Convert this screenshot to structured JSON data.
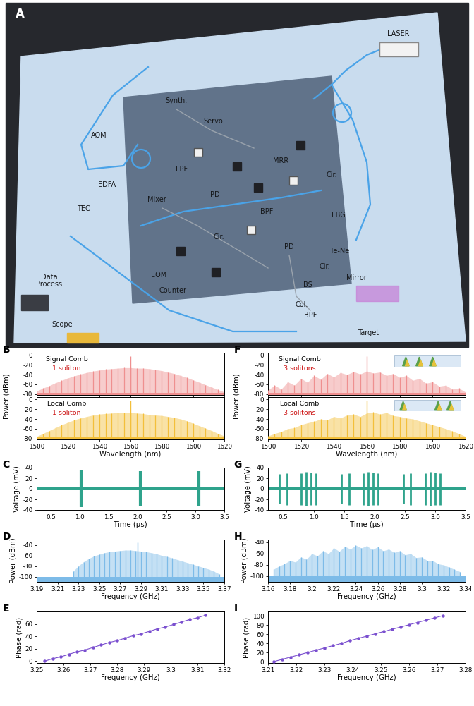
{
  "diagram": {
    "panel": "A",
    "labels": [
      "LASER",
      "Synth.",
      "Servo",
      "MRR",
      "Cir.",
      "AOM",
      "EDFA",
      "LPF",
      "Mixer",
      "PD",
      "BPF",
      "FBG",
      "He-Ne",
      "Cir.",
      "BS",
      "Mirror",
      "Col.",
      "Target",
      "TEC",
      "Cir.",
      "EOM",
      "Counter",
      "PD",
      "BPF",
      "Data\nProcess",
      "Scope"
    ]
  },
  "chart_data": [
    {
      "panel": "B",
      "type": "stem",
      "label": "Signal Comb",
      "note": "1 soliton",
      "color": "#ef8f8f",
      "ylabel": "Power (dBm)",
      "tick_labels": "y",
      "xlim": [
        1500,
        1620
      ],
      "xticks": [
        1500,
        1520,
        1540,
        1560,
        1580,
        1600,
        1620
      ],
      "ylim": [
        -82,
        5
      ],
      "yticks": [
        -80,
        -60,
        -40,
        -20,
        0
      ],
      "noise_floor": -78,
      "spike": {
        "x": 1560,
        "value": -2
      },
      "x": [
        1500,
        1504,
        1508,
        1512,
        1516,
        1520,
        1524,
        1528,
        1532,
        1536,
        1540,
        1544,
        1548,
        1552,
        1556,
        1560,
        1564,
        1568,
        1572,
        1576,
        1580,
        1584,
        1588,
        1592,
        1596,
        1600,
        1604,
        1608,
        1612,
        1616,
        1620
      ],
      "values": [
        -74,
        -68,
        -63,
        -57,
        -52,
        -47,
        -43,
        -39,
        -36,
        -33,
        -31,
        -29,
        -28,
        -27,
        -26,
        -26,
        -27,
        -27,
        -28,
        -30,
        -32,
        -35,
        -38,
        -42,
        -46,
        -51,
        -56,
        -61,
        -66,
        -71,
        -76
      ]
    },
    {
      "type": "stem",
      "label": "Local Comb",
      "note": "1 soliton",
      "color": "#f3bf3a",
      "xlabel": "Wavelength (nm)",
      "xlim": [
        1500,
        1620
      ],
      "xticks": [
        1500,
        1520,
        1540,
        1560,
        1580,
        1600,
        1620
      ],
      "ylim": [
        -82,
        5
      ],
      "yticks": [
        -80,
        -60,
        -40,
        -20,
        0
      ],
      "noise_floor": -78,
      "spike": {
        "x": 1560,
        "value": -2
      },
      "x": [
        1500,
        1504,
        1508,
        1512,
        1516,
        1520,
        1524,
        1528,
        1532,
        1536,
        1540,
        1544,
        1548,
        1552,
        1556,
        1560,
        1564,
        1568,
        1572,
        1576,
        1580,
        1584,
        1588,
        1592,
        1596,
        1600,
        1604,
        1608,
        1612,
        1616,
        1620
      ],
      "values": [
        -76,
        -70,
        -64,
        -58,
        -52,
        -47,
        -42,
        -38,
        -35,
        -32,
        -30,
        -29,
        -28,
        -27,
        -27,
        -27,
        -28,
        -29,
        -31,
        -32,
        -33,
        -35,
        -37,
        -40,
        -44,
        -49,
        -54,
        -59,
        -64,
        -70,
        -75
      ]
    },
    {
      "panel": "C",
      "type": "trace",
      "color": "#2fa38c",
      "xlabel": "Time (μs)",
      "ylabel": "Voltage (mV)",
      "xlim": [
        0.25,
        3.5
      ],
      "xticks": [
        0.5,
        1.0,
        1.5,
        2.0,
        2.5,
        3.0,
        3.5
      ],
      "ylim": [
        -40,
        40
      ],
      "yticks": [
        -40,
        -20,
        0,
        20,
        40
      ],
      "noise_band": [
        -3,
        3
      ],
      "bursts": {
        "time": [
          1.02,
          2.04,
          3.06
        ],
        "upper": [
          35,
          33,
          33
        ],
        "lower": [
          -35,
          -33,
          -33
        ]
      }
    },
    {
      "panel": "D",
      "type": "stem",
      "color": "#7dbbe8",
      "xlabel": "Frequency (GHz)",
      "ylabel": "Power (dBm)",
      "xlim": [
        3.19,
        3.37
      ],
      "xticks": [
        3.19,
        3.21,
        3.23,
        3.25,
        3.27,
        3.29,
        3.31,
        3.33,
        3.35,
        3.37
      ],
      "ylim": [
        -110,
        -30
      ],
      "yticks": [
        -100,
        -80,
        -60,
        -40
      ],
      "noise_floor": -100,
      "spike": {
        "x": 3.287,
        "value": -35
      },
      "x": [
        3.225,
        3.23,
        3.235,
        3.24,
        3.245,
        3.25,
        3.255,
        3.26,
        3.265,
        3.27,
        3.275,
        3.28,
        3.285,
        3.29,
        3.295,
        3.3,
        3.305,
        3.31,
        3.315,
        3.32,
        3.325,
        3.33,
        3.335,
        3.34,
        3.345,
        3.35,
        3.355,
        3.36,
        3.365
      ],
      "values": [
        -90,
        -80,
        -72,
        -66,
        -61,
        -58,
        -55,
        -53,
        -52,
        -51,
        -50,
        -50,
        -51,
        -52,
        -53,
        -55,
        -57,
        -60,
        -62,
        -65,
        -68,
        -71,
        -74,
        -77,
        -80,
        -83,
        -86,
        -90,
        -95
      ]
    },
    {
      "panel": "E",
      "type": "line",
      "color": "#7a4fcf",
      "marker": "o",
      "line_style": "solid",
      "xlabel": "Frequency (GHz)",
      "ylabel": "Phase (rad)",
      "xlim": [
        3.25,
        3.32
      ],
      "xticks": [
        3.25,
        3.26,
        3.27,
        3.28,
        3.29,
        3.3,
        3.31,
        3.32
      ],
      "ylim": [
        -3,
        80
      ],
      "yticks": [
        0,
        20,
        40,
        60
      ],
      "x": [
        3.253,
        3.256,
        3.259,
        3.262,
        3.265,
        3.268,
        3.271,
        3.274,
        3.277,
        3.28,
        3.283,
        3.286,
        3.289,
        3.292,
        3.295,
        3.298,
        3.301,
        3.304,
        3.307,
        3.31,
        3.313
      ],
      "values": [
        0,
        4,
        7,
        11,
        15,
        18,
        22,
        26,
        30,
        33,
        37,
        41,
        44,
        48,
        52,
        55,
        59,
        63,
        67,
        70,
        74
      ]
    },
    {
      "panel": "F",
      "type": "stem",
      "label": "Signal Comb",
      "note": "3 solitons",
      "color": "#ef8f8f",
      "ylabel": "Power (dBm)",
      "tick_labels": "y",
      "xlim": [
        1500,
        1620
      ],
      "xticks": [
        1500,
        1520,
        1540,
        1560,
        1580,
        1600,
        1620
      ],
      "ylim": [
        -82,
        5
      ],
      "yticks": [
        -80,
        -60,
        -40,
        -20,
        0
      ],
      "noise_floor": -78,
      "spike": {
        "x": 1560,
        "value": -2
      },
      "x": [
        1500,
        1504,
        1508,
        1512,
        1516,
        1520,
        1524,
        1528,
        1532,
        1536,
        1540,
        1544,
        1548,
        1552,
        1556,
        1560,
        1564,
        1568,
        1572,
        1576,
        1580,
        1584,
        1588,
        1592,
        1596,
        1600,
        1604,
        1608,
        1612,
        1616,
        1620
      ],
      "values": [
        -72,
        -62,
        -70,
        -55,
        -62,
        -48,
        -56,
        -42,
        -50,
        -38,
        -45,
        -36,
        -40,
        -34,
        -39,
        -33,
        -37,
        -35,
        -42,
        -38,
        -46,
        -42,
        -52,
        -48,
        -58,
        -55,
        -64,
        -62,
        -70,
        -68,
        -76
      ]
    },
    {
      "type": "stem",
      "label": "Local Comb",
      "note": "3 solitons",
      "color": "#f3bf3a",
      "xlabel": "Wavelength (nm)",
      "xlim": [
        1500,
        1620
      ],
      "xticks": [
        1500,
        1520,
        1540,
        1560,
        1580,
        1600,
        1620
      ],
      "ylim": [
        -82,
        5
      ],
      "yticks": [
        -80,
        -60,
        -40,
        -20,
        0
      ],
      "noise_floor": -78,
      "spike": {
        "x": 1560,
        "value": -2
      },
      "x": [
        1500,
        1504,
        1508,
        1512,
        1516,
        1520,
        1524,
        1528,
        1532,
        1536,
        1540,
        1544,
        1548,
        1552,
        1556,
        1560,
        1564,
        1568,
        1572,
        1576,
        1580,
        1584,
        1588,
        1592,
        1596,
        1600,
        1604,
        1608,
        1612,
        1616,
        1620
      ],
      "values": [
        -75,
        -70,
        -66,
        -60,
        -58,
        -52,
        -48,
        -45,
        -40,
        -42,
        -35,
        -38,
        -32,
        -30,
        -35,
        -28,
        -26,
        -30,
        -27,
        -33,
        -35,
        -38,
        -40,
        -44,
        -48,
        -52,
        -56,
        -60,
        -65,
        -70,
        -76
      ]
    },
    {
      "panel": "G",
      "type": "trace",
      "color": "#2fa38c",
      "xlabel": "Time (μs)",
      "ylabel": "Voltage (mV)",
      "xlim": [
        0.25,
        3.5
      ],
      "xticks": [
        0.5,
        1.0,
        1.5,
        2.0,
        2.5,
        3.0,
        3.5
      ],
      "ylim": [
        -40,
        40
      ],
      "yticks": [
        -40,
        -20,
        0,
        20,
        40
      ],
      "noise_band": [
        -3,
        3
      ],
      "bursts": {
        "time": [
          0.44,
          0.56,
          0.8,
          0.88,
          0.96,
          1.04,
          1.46,
          1.58,
          1.82,
          1.9,
          1.98,
          2.06,
          2.48,
          2.6,
          2.84,
          2.92,
          3.0,
          3.08
        ],
        "upper": [
          28,
          30,
          30,
          32,
          31,
          30,
          28,
          30,
          30,
          32,
          31,
          30,
          28,
          30,
          30,
          32,
          31,
          30
        ],
        "lower": [
          -28,
          -30,
          -30,
          -32,
          -31,
          -30,
          -28,
          -30,
          -30,
          -32,
          -31,
          -30,
          -28,
          -30,
          -30,
          -32,
          -31,
          -30
        ]
      }
    },
    {
      "panel": "H",
      "type": "stem",
      "color": "#7dbbe8",
      "xlabel": "Frequency (GHz)",
      "ylabel": "Power (dBm)",
      "xlim": [
        3.16,
        3.34
      ],
      "xticks": [
        3.16,
        3.18,
        3.2,
        3.22,
        3.24,
        3.26,
        3.28,
        3.3,
        3.32,
        3.34
      ],
      "ylim": [
        -110,
        -35
      ],
      "yticks": [
        -100,
        -80,
        -60,
        -40
      ],
      "noise_floor": -100,
      "x": [
        3.165,
        3.17,
        3.175,
        3.18,
        3.185,
        3.19,
        3.195,
        3.2,
        3.205,
        3.21,
        3.215,
        3.22,
        3.225,
        3.23,
        3.235,
        3.24,
        3.245,
        3.25,
        3.255,
        3.26,
        3.265,
        3.27,
        3.275,
        3.28,
        3.285,
        3.29,
        3.295,
        3.3,
        3.305,
        3.31,
        3.315,
        3.32,
        3.325,
        3.33,
        3.335
      ],
      "values": [
        -88,
        -82,
        -78,
        -72,
        -75,
        -66,
        -70,
        -60,
        -64,
        -55,
        -60,
        -50,
        -56,
        -47,
        -52,
        -45,
        -50,
        -46,
        -53,
        -48,
        -55,
        -52,
        -58,
        -55,
        -62,
        -60,
        -67,
        -66,
        -72,
        -72,
        -78,
        -80,
        -84,
        -88,
        -92
      ]
    },
    {
      "panel": "I",
      "type": "line",
      "color": "#7a4fcf",
      "marker": "o",
      "line_style": "solid",
      "xlabel": "Frequency (GHz)",
      "ylabel": "Phase (rad)",
      "xlim": [
        3.21,
        3.28
      ],
      "xticks": [
        3.21,
        3.22,
        3.23,
        3.24,
        3.25,
        3.26,
        3.27,
        3.28
      ],
      "ylim": [
        -3,
        110
      ],
      "yticks": [
        0,
        20,
        40,
        60,
        80,
        100
      ],
      "x": [
        3.212,
        3.215,
        3.218,
        3.221,
        3.224,
        3.227,
        3.23,
        3.233,
        3.236,
        3.239,
        3.242,
        3.245,
        3.248,
        3.251,
        3.254,
        3.257,
        3.26,
        3.263,
        3.266,
        3.269,
        3.272
      ],
      "values": [
        0,
        5,
        10,
        15,
        20,
        25,
        30,
        35,
        40,
        46,
        51,
        56,
        61,
        66,
        71,
        76,
        81,
        86,
        91,
        96,
        101
      ]
    }
  ]
}
